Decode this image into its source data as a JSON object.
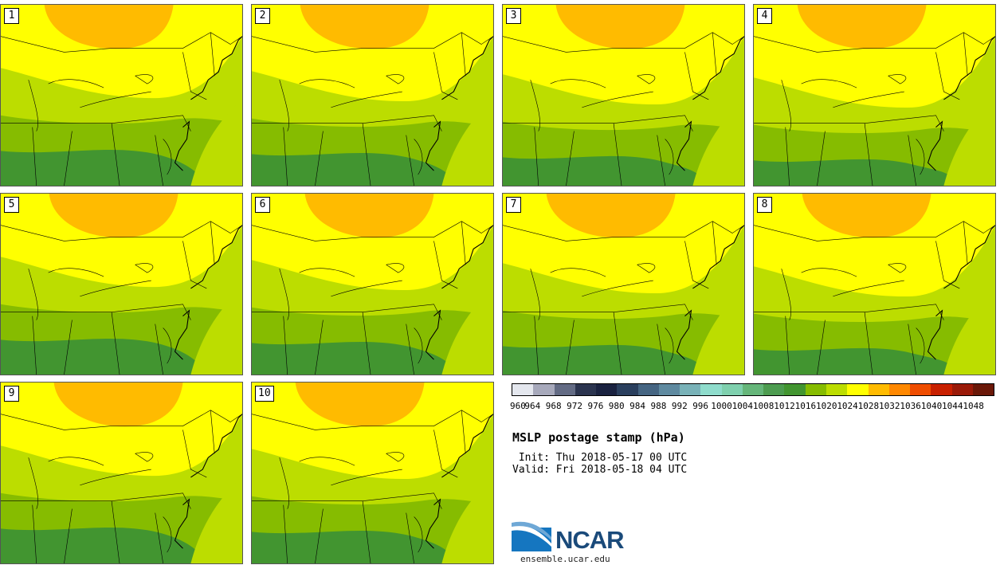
{
  "panels": [
    {
      "label": "1"
    },
    {
      "label": "2"
    },
    {
      "label": "3"
    },
    {
      "label": "4"
    },
    {
      "label": "5"
    },
    {
      "label": "6"
    },
    {
      "label": "7"
    },
    {
      "label": "8"
    },
    {
      "label": "9"
    },
    {
      "label": "10"
    }
  ],
  "colorbar": {
    "colors": [
      "#e4e7ee",
      "#a7a9bb",
      "#636b84",
      "#2b344f",
      "#1a2240",
      "#2a3f5e",
      "#456582",
      "#5f8aa0",
      "#79b2b8",
      "#8fdccc",
      "#7fd0ae",
      "#66b67a",
      "#4d9c50",
      "#429530",
      "#86bc00",
      "#bcdd00",
      "#ffff00",
      "#ffbb00",
      "#ff8800",
      "#ef4d00",
      "#c82000",
      "#9a1a08",
      "#6a1808"
    ],
    "tick_labels": [
      "960",
      "964",
      "968",
      "972",
      "976",
      "980",
      "984",
      "988",
      "992",
      "996",
      "1000",
      "1004",
      "1008",
      "1012",
      "1016",
      "1020",
      "1024",
      "1028",
      "1032",
      "1036",
      "1040",
      "1044",
      "1048"
    ]
  },
  "map_colors": {
    "yellow": "#ffff00",
    "orange": "#ffbb00",
    "lime": "#bcdd00",
    "mid_green": "#86bc00",
    "dark_green": "#429530"
  },
  "title": "MSLP postage stamp (hPa)",
  "init": " Init: Thu 2018-05-17 00 UTC",
  "valid": "Valid: Fri 2018-05-18 04 UTC",
  "logo": {
    "name": "NCAR"
  },
  "site": "ensemble.ucar.edu"
}
